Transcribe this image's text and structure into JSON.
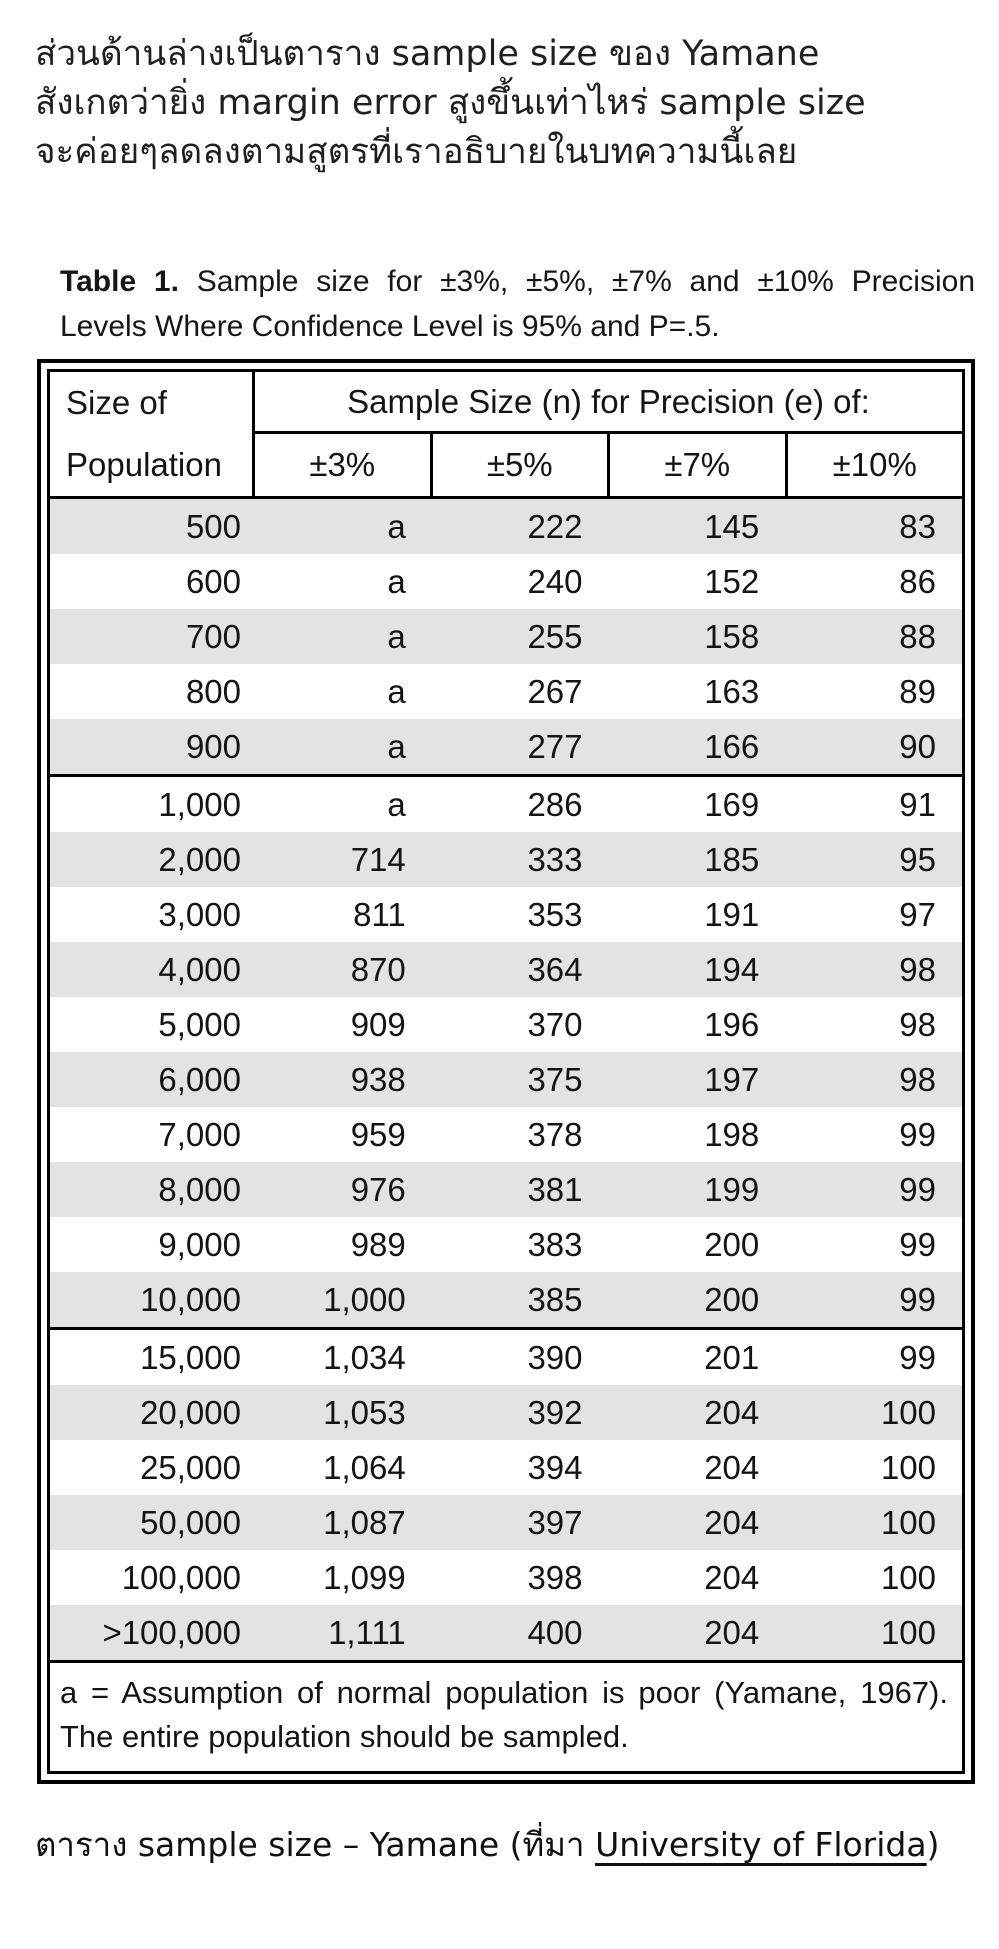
{
  "intro": {
    "lines": [
      "ส่วนด้านล่างเป็นตาราง sample size ของ Yamane",
      "สังเกตว่ายิ่ง margin error สูงขึ้นเท่าไหร่ sample size",
      "จะค่อยๆลดลงตามสูตรที่เราอธิบายในบทความนี้เลย"
    ]
  },
  "table": {
    "title_label": "Table 1.",
    "title_text": "Sample size for ±3%, ±5%, ±7% and ±10% Precision Levels Where Confidence Level is 95% and P=.5.",
    "header": {
      "col1_line1": "Size of",
      "col1_line2": "Population",
      "span_header": "Sample Size (n) for Precision (e) of:",
      "precision_cols": [
        "±3%",
        "±5%",
        "±7%",
        "±10%"
      ]
    },
    "groups": [
      {
        "rows": [
          [
            "500",
            "a",
            "222",
            "145",
            "83"
          ],
          [
            "600",
            "a",
            "240",
            "152",
            "86"
          ],
          [
            "700",
            "a",
            "255",
            "158",
            "88"
          ],
          [
            "800",
            "a",
            "267",
            "163",
            "89"
          ],
          [
            "900",
            "a",
            "277",
            "166",
            "90"
          ]
        ]
      },
      {
        "rows": [
          [
            "1,000",
            "a",
            "286",
            "169",
            "91"
          ],
          [
            "2,000",
            "714",
            "333",
            "185",
            "95"
          ],
          [
            "3,000",
            "811",
            "353",
            "191",
            "97"
          ],
          [
            "4,000",
            "870",
            "364",
            "194",
            "98"
          ],
          [
            "5,000",
            "909",
            "370",
            "196",
            "98"
          ],
          [
            "6,000",
            "938",
            "375",
            "197",
            "98"
          ],
          [
            "7,000",
            "959",
            "378",
            "198",
            "99"
          ],
          [
            "8,000",
            "976",
            "381",
            "199",
            "99"
          ],
          [
            "9,000",
            "989",
            "383",
            "200",
            "99"
          ],
          [
            "10,000",
            "1,000",
            "385",
            "200",
            "99"
          ]
        ]
      },
      {
        "rows": [
          [
            "15,000",
            "1,034",
            "390",
            "201",
            "99"
          ],
          [
            "20,000",
            "1,053",
            "392",
            "204",
            "100"
          ],
          [
            "25,000",
            "1,064",
            "394",
            "204",
            "100"
          ],
          [
            "50,000",
            "1,087",
            "397",
            "204",
            "100"
          ],
          [
            "100,000",
            "1,099",
            "398",
            "204",
            "100"
          ],
          [
            ">100,000",
            "1,111",
            "400",
            "204",
            "100"
          ]
        ]
      }
    ],
    "footnote": "a = Assumption of normal population is poor (Yamane, 1967).  The entire population should be sampled."
  },
  "caption": {
    "prefix": "ตาราง sample size – Yamane (ที่มา ",
    "link": "University of Florida",
    "suffix": ")"
  },
  "colors": {
    "row_shade": "#e3e3e3",
    "border": "#000000",
    "text": "#1c1c1c"
  }
}
